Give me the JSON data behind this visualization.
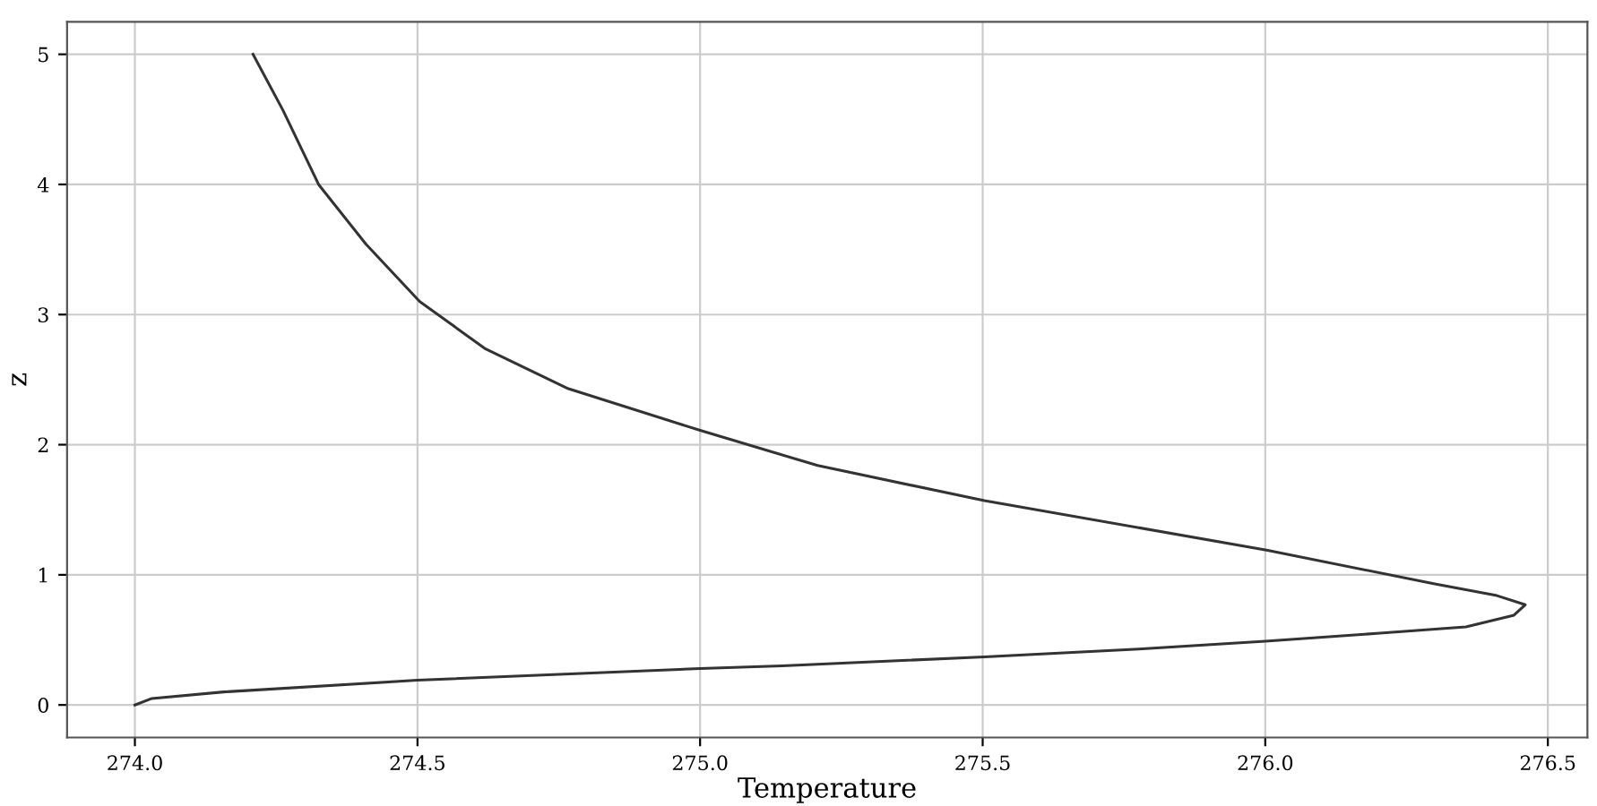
{
  "chart_data": {
    "type": "line",
    "xlabel": "Temperature",
    "ylabel": "z",
    "series": [
      {
        "color": "#333333",
        "x": [
          274.0,
          274.03,
          274.157,
          274.5,
          275.0,
          275.145,
          275.503,
          275.776,
          276.0,
          276.197,
          276.355,
          276.44,
          276.46,
          276.41,
          276.3,
          276.002,
          275.503,
          275.208,
          275.0,
          274.767,
          274.619,
          274.504,
          274.409,
          274.325,
          274.262,
          274.209
        ],
        "values": [
          0.0,
          0.05,
          0.1,
          0.19,
          0.28,
          0.3,
          0.37,
          0.43,
          0.49,
          0.55,
          0.6,
          0.69,
          0.77,
          0.84,
          0.93,
          1.19,
          1.57,
          1.84,
          2.11,
          2.43,
          2.74,
          3.1,
          3.54,
          4.0,
          4.57,
          5.0
        ]
      }
    ],
    "xlim": [
      273.88,
      276.57
    ],
    "ylim": [
      -0.25,
      5.25
    ],
    "xticks": [
      {
        "value": 274,
        "label": "274.0"
      },
      {
        "value": 274.5,
        "label": "274.5"
      },
      {
        "value": 275,
        "label": "275.0"
      },
      {
        "value": 275.5,
        "label": "275.5"
      },
      {
        "value": 276,
        "label": "276.0"
      },
      {
        "value": 276.5,
        "label": "276.5"
      }
    ],
    "yticks": [
      0,
      1,
      2,
      3,
      4,
      5
    ],
    "grid": true
  }
}
